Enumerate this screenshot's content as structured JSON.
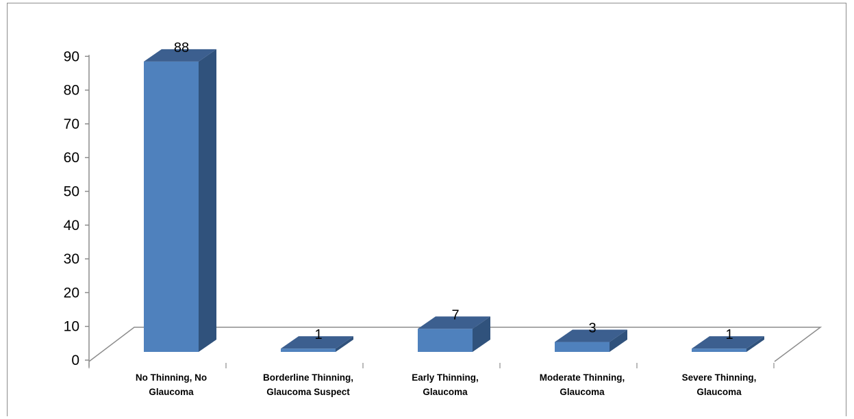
{
  "chart_data": {
    "type": "bar",
    "title": "",
    "xlabel": "",
    "ylabel": "",
    "ylim": [
      0,
      90
    ],
    "yticks": [
      0,
      10,
      20,
      30,
      40,
      50,
      60,
      70,
      80,
      90
    ],
    "categories": [
      [
        "No Thinning, No",
        "Glaucoma"
      ],
      [
        "Borderline Thinning,",
        "Glaucoma Suspect"
      ],
      [
        "Early Thinning,",
        "Glaucoma"
      ],
      [
        "Moderate Thinning,",
        "Glaucoma"
      ],
      [
        "Severe Thinning,",
        "Glaucoma"
      ]
    ],
    "values": [
      88,
      1,
      7,
      3,
      1
    ],
    "data_labels": [
      "88",
      "1",
      "7",
      "3",
      "1"
    ],
    "grid": false,
    "legend": false,
    "style": "3d-column",
    "colors": {
      "front": "#4f81bd",
      "side": "#30527c",
      "top": "#3c5f8f",
      "axis": "#8c8c8c"
    }
  }
}
